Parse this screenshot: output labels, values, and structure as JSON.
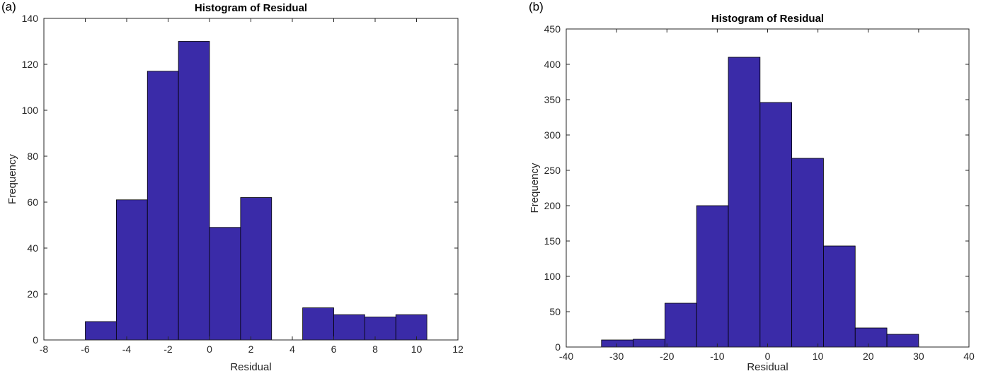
{
  "figure": {
    "background": "#ffffff",
    "bar_fill": "#3A2BA8",
    "bar_edge": "#000000",
    "axis_color": "#262626",
    "text_color": "#262626"
  },
  "chart_data": [
    {
      "type": "histogram",
      "panel_label": "(a)",
      "title": "Histogram of Residual",
      "xlabel": "Residual",
      "ylabel": "Frequency",
      "xlim": [
        -8,
        12
      ],
      "ylim": [
        0,
        140
      ],
      "xticks": [
        -8,
        -6,
        -4,
        -2,
        0,
        2,
        4,
        6,
        8,
        10,
        12
      ],
      "yticks": [
        0,
        20,
        40,
        60,
        80,
        100,
        120,
        140
      ],
      "grid": false,
      "legend": null,
      "bins": [
        {
          "start": -6.0,
          "end": -4.5,
          "count": 8
        },
        {
          "start": -4.5,
          "end": -3.0,
          "count": 61
        },
        {
          "start": -3.0,
          "end": -1.5,
          "count": 117
        },
        {
          "start": -1.5,
          "end": 0.0,
          "count": 130
        },
        {
          "start": 0.0,
          "end": 1.5,
          "count": 49
        },
        {
          "start": 1.5,
          "end": 3.0,
          "count": 62
        },
        {
          "start": 3.0,
          "end": 4.5,
          "count": 0
        },
        {
          "start": 4.5,
          "end": 6.0,
          "count": 14
        },
        {
          "start": 6.0,
          "end": 7.5,
          "count": 11
        },
        {
          "start": 7.5,
          "end": 9.0,
          "count": 10
        },
        {
          "start": 9.0,
          "end": 10.5,
          "count": 11
        }
      ]
    },
    {
      "type": "histogram",
      "panel_label": "(b)",
      "title": "Histogram of Residual",
      "xlabel": "Residual",
      "ylabel": "Frequency",
      "xlim": [
        -40,
        40
      ],
      "ylim": [
        0,
        450
      ],
      "xticks": [
        -40,
        -30,
        -20,
        -10,
        0,
        10,
        20,
        30,
        40
      ],
      "yticks": [
        0,
        50,
        100,
        150,
        200,
        250,
        300,
        350,
        400,
        450
      ],
      "grid": false,
      "legend": null,
      "bins": [
        {
          "start": -33.0,
          "end": -26.7,
          "count": 10
        },
        {
          "start": -26.7,
          "end": -20.4,
          "count": 11
        },
        {
          "start": -20.4,
          "end": -14.1,
          "count": 62
        },
        {
          "start": -14.1,
          "end": -7.8,
          "count": 200
        },
        {
          "start": -7.8,
          "end": -1.5,
          "count": 410
        },
        {
          "start": -1.5,
          "end": 4.8,
          "count": 346
        },
        {
          "start": 4.8,
          "end": 11.1,
          "count": 267
        },
        {
          "start": 11.1,
          "end": 17.4,
          "count": 143
        },
        {
          "start": 17.4,
          "end": 23.7,
          "count": 27
        },
        {
          "start": 23.7,
          "end": 30.0,
          "count": 18
        }
      ]
    }
  ]
}
